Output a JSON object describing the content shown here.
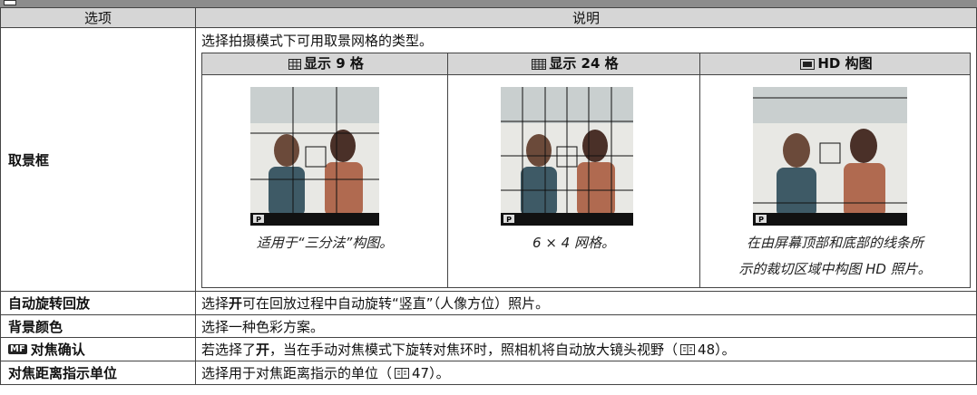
{
  "table": {
    "header": [
      "选项",
      "说明"
    ],
    "viewfinder": {
      "option": "取景框",
      "intro": "选择拍摄模式下可用取景网格的类型。",
      "columns": [
        {
          "title": "显示 9 格",
          "caption": [
            "适用于“三分法”构图。"
          ]
        },
        {
          "title": "显示 24 格",
          "caption": [
            "6 × 4 网格。"
          ]
        },
        {
          "title": "HD 构图",
          "caption": [
            "在由屏幕顶部和底部的线条所",
            "示的裁切区域中构图 HD 照片。"
          ]
        }
      ],
      "osd_mode": "P"
    },
    "rows": [
      {
        "option": "自动旋转回放",
        "parts": [
          "选择 ",
          "开",
          " 可在回放过程中自动旋转“竖直”（人像方位）照片。"
        ]
      },
      {
        "option": "背景颜色",
        "parts": [
          "选择一种色彩方案。"
        ]
      },
      {
        "option_icon": "MF",
        "option": "对焦确认",
        "parts": [
          "若选择了 ",
          "开",
          "，当在手动对焦模式下旋转对焦环时，照相机将自动放大镜头视野（",
          "48）。"
        ]
      },
      {
        "option": "对焦距离指示单位",
        "parts": [
          "选择用于对焦距离指示的单位（",
          "47）。"
        ]
      }
    ]
  }
}
